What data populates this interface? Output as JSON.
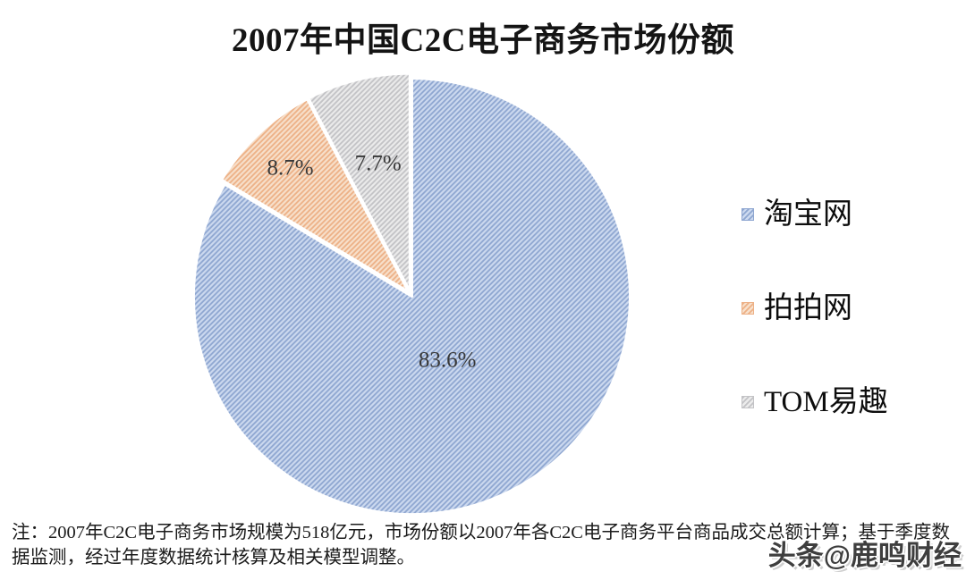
{
  "chart_data": {
    "type": "pie",
    "title": "2007年中国C2C电子商务市场份额",
    "unit": "%",
    "legend_position": "right",
    "fill_style": "diagonal-hatch",
    "start_angle": "12-oclock",
    "direction": "clockwise",
    "slices": [
      {
        "label": "淘宝网",
        "value": 83.6,
        "display": "83.6%",
        "base_color": "#ccd9ef",
        "stripe_color": "#8fa7d1"
      },
      {
        "label": "拍拍网",
        "value": 8.7,
        "display": "8.7%",
        "base_color": "#f7e0cb",
        "stripe_color": "#edb187"
      },
      {
        "label": "TOM易趣",
        "value": 7.7,
        "display": "7.7%",
        "base_color": "#ebebeb",
        "stripe_color": "#c3c3c6"
      }
    ],
    "slice_border_color": "#ffffff",
    "label_color": "#383838"
  },
  "footnote": "注：2007年C2C电子商务市场规模为518亿元，市场份额以2007年各C2C电子商务平台商品成交总额计算；基于季度数据监测，经过年度数据统计核算及相关模型调整。",
  "watermark": "头条@鹿鸣财经"
}
